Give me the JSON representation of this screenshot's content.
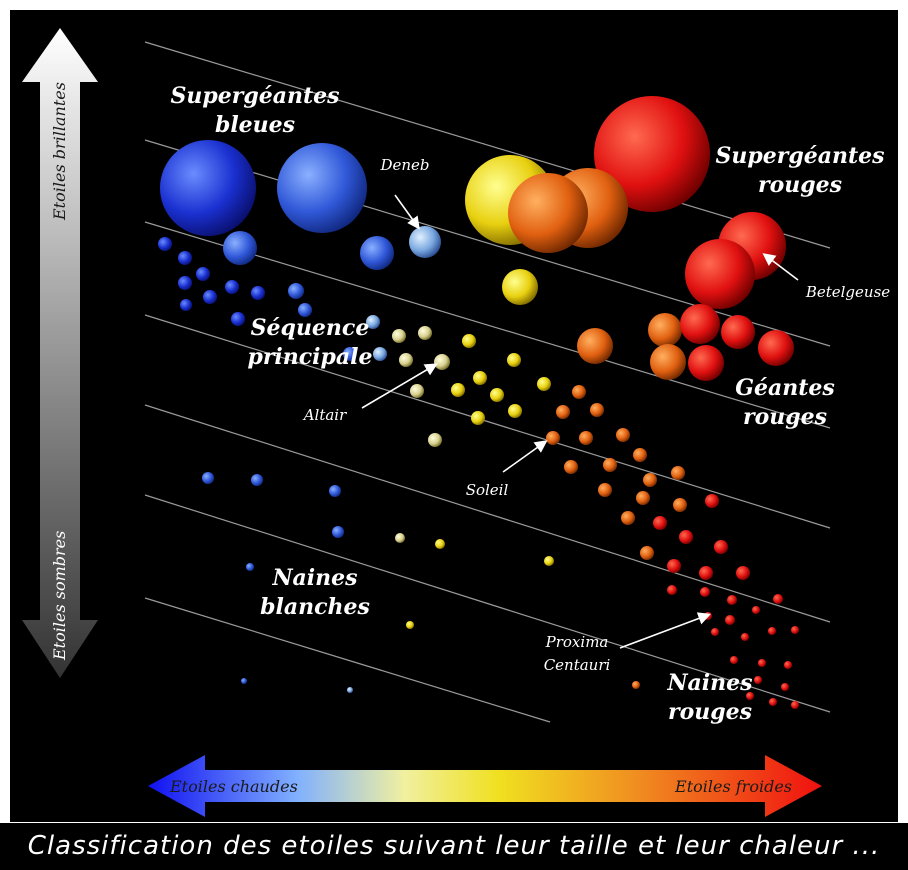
{
  "caption": "Classification des etoiles suivant leur taille et leur chaleur ...",
  "axes": {
    "top_label": "Etoiles brillantes",
    "bottom_label": "Etoiles sombres",
    "left_label": "Etoiles chaudes",
    "right_label": "Etoiles froides"
  },
  "groups": {
    "supergeantes_bleues": [
      "Supergéantes",
      "bleues"
    ],
    "supergeantes_rouges": [
      "Supergéantes",
      "rouges"
    ],
    "sequence_principale": [
      "Séquence",
      "principale"
    ],
    "geantes_rouges": [
      "Géantes",
      "rouges"
    ],
    "naines_blanches": [
      "Naines",
      "blanches"
    ],
    "naines_rouges": [
      "Naines",
      "rouges"
    ]
  },
  "stars": {
    "deneb": "Deneb",
    "betelgeuse": "Betelgeuse",
    "altair": "Altair",
    "soleil": "Soleil",
    "proxima": [
      "Proxima",
      "Centauri"
    ]
  },
  "colors": {
    "background": "#000000",
    "hot": "#1020e0",
    "cool": "#e01010",
    "yellow": "#f0e020",
    "orange": "#e06010"
  }
}
